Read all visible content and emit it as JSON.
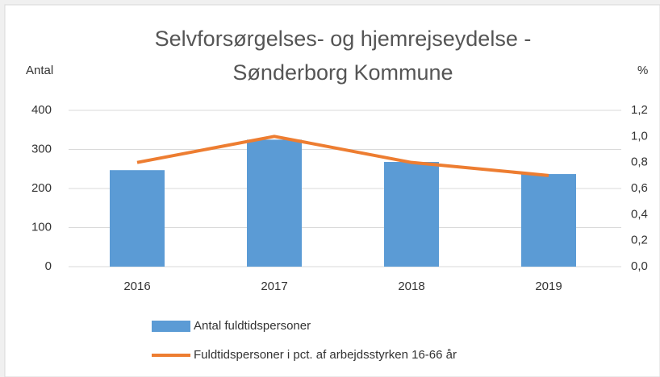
{
  "chart_data": {
    "type": "bar-line",
    "title": [
      "Selvforsørgelses- og hjemrejseydelse -",
      "Sønderborg Kommune"
    ],
    "y_label": "Antal",
    "y2_label": "%",
    "categories": [
      "2016",
      "2017",
      "2018",
      "2019"
    ],
    "series": [
      {
        "name": "Antal fuldtidspersoner",
        "type": "bar",
        "color": "#5b9bd5",
        "values": [
          247,
          325,
          268,
          237
        ]
      },
      {
        "name": "Fuldtidspersoner i pct. af arbejdsstyrken 16-66 år",
        "type": "line",
        "axis": "y2",
        "color": "#ed7d31",
        "values": [
          0.8,
          1.0,
          0.8,
          0.7
        ]
      }
    ],
    "ylim": [
      0,
      400
    ],
    "yticks": [
      0,
      100,
      200,
      300,
      400
    ],
    "y2lim": [
      0,
      1.2
    ],
    "y2ticks": [
      {
        "value": 0,
        "label": "0,0"
      },
      {
        "value": 0.2,
        "label": "0,2"
      },
      {
        "value": 0.4,
        "label": "0,4"
      },
      {
        "value": 0.6,
        "label": "0,6"
      },
      {
        "value": 0.8,
        "label": "0,8"
      },
      {
        "value": 1.0,
        "label": "1,0"
      },
      {
        "value": 1.2,
        "label": "1,2"
      }
    ],
    "grid": true
  }
}
